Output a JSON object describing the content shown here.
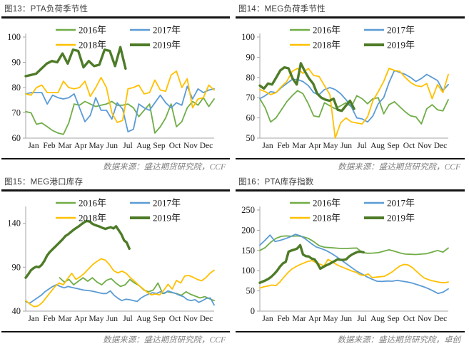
{
  "months": [
    "Jan",
    "Feb",
    "Mar",
    "Apr",
    "May",
    "Jun",
    "Jul",
    "Aug",
    "Sep",
    "Oct",
    "Nov",
    "Dec"
  ],
  "palette": {
    "title_color": "#3d3d3d",
    "source_color": "#7f7f7f",
    "axis_color": "#a6a6a6",
    "rule_color": "#141414",
    "series_2016": "#70AD47",
    "series_2017": "#5B9BD5",
    "series_2018": "#FFC000",
    "series_2019": "#4E7B28"
  },
  "chart_data": [
    {
      "type": "line",
      "title": "图13：PTA负荷季节性",
      "source": "数据来源：盛达期货研究院，CCF",
      "xlabel": "",
      "ylabel": "",
      "x_categories": [
        "Jan",
        "Feb",
        "Mar",
        "Apr",
        "May",
        "Jun",
        "Jul",
        "Aug",
        "Sep",
        "Oct",
        "Nov",
        "Dec"
      ],
      "ylim": [
        60,
        100
      ],
      "yticks": [
        60,
        70,
        80,
        90,
        100
      ],
      "grid": false,
      "legend_position": "top-center",
      "series": [
        {
          "name": "2016年",
          "color": "#70AD47",
          "width": 1.8,
          "values": [
            70.5,
            70,
            65.5,
            66,
            64.5,
            63,
            62,
            61.5,
            66,
            73.5,
            73,
            74.5,
            73.5,
            72.5,
            73,
            73.5,
            74.5,
            73,
            73,
            73.5,
            72,
            68.5,
            71,
            73.5,
            62,
            64.5,
            68,
            73.5,
            64.5,
            66.5,
            72,
            74.5,
            73,
            76,
            72.5,
            75.5
          ]
        },
        {
          "name": "2017年",
          "color": "#5B9BD5",
          "width": 1.8,
          "values": [
            77.5,
            78,
            78,
            78,
            73.5,
            77,
            76,
            75.5,
            76,
            77.5,
            72,
            66.5,
            69,
            76,
            71,
            71,
            67.5,
            74,
            71.5,
            62.5,
            63.5,
            73.5,
            72,
            71,
            74,
            77,
            74,
            72,
            74,
            73,
            80.5,
            75.5,
            79.5,
            78,
            79,
            79.5
          ]
        },
        {
          "name": "2018年",
          "color": "#FFC000",
          "width": 1.8,
          "values": [
            77.5,
            77,
            80,
            81,
            78,
            78,
            78,
            82.5,
            80,
            79.5,
            80,
            82.5,
            76.5,
            80,
            84,
            80,
            70,
            66.2,
            67,
            79.5,
            80,
            81,
            77.5,
            78,
            83,
            79,
            78.5,
            85,
            86.5,
            80,
            83.5,
            72,
            75.5,
            76,
            81,
            79
          ]
        },
        {
          "name": "2019年",
          "color": "#4E7B28",
          "width": 3.4,
          "end_frac": 0.53,
          "values": [
            84.5,
            85,
            85.5,
            87.5,
            89.5,
            90.5,
            90,
            93.5,
            89.5,
            95,
            94.5,
            88,
            90.5,
            88.5,
            89,
            95,
            94.5,
            88.5,
            96,
            87.5
          ]
        }
      ]
    },
    {
      "type": "line",
      "title": "图14：MEG负荷季节性",
      "source": "数据来源：盛达期货研究院，CCF",
      "xlabel": "",
      "ylabel": "",
      "x_categories": [
        "Jan",
        "Feb",
        "Mar",
        "Apr",
        "May",
        "Jun",
        "Jul",
        "Aug",
        "Sep",
        "Oct",
        "Nov",
        "Dec"
      ],
      "ylim": [
        50,
        100
      ],
      "yticks": [
        50,
        60,
        70,
        80,
        90,
        100
      ],
      "grid": false,
      "legend_position": "top-center",
      "series": [
        {
          "name": "2016年",
          "color": "#70AD47",
          "width": 1.8,
          "values": [
            69.5,
            65,
            58,
            60,
            64,
            68,
            71,
            73.5,
            72,
            67,
            61,
            60.5,
            67.5,
            66,
            64.5,
            66,
            67.5,
            65.5,
            71,
            69.5,
            67,
            69.5,
            70,
            62,
            66.5,
            68,
            65.5,
            63,
            61,
            60.5,
            57,
            64.5,
            66.5,
            64,
            63.5,
            69
          ]
        },
        {
          "name": "2017年",
          "color": "#5B9BD5",
          "width": 1.8,
          "values": [
            69.5,
            71,
            73,
            72.5,
            75,
            77,
            79,
            79,
            78,
            76,
            72.5,
            71.5,
            74,
            75,
            74,
            72,
            69,
            65.5,
            60,
            59.5,
            58,
            61,
            67,
            70,
            77.5,
            83.5,
            82.5,
            81.5,
            80,
            78,
            79.5,
            81.5,
            80,
            78.5,
            73.5,
            76.5
          ]
        },
        {
          "name": "2018年",
          "color": "#FFC000",
          "width": 1.8,
          "values": [
            74,
            73,
            71.5,
            72.5,
            75.5,
            78,
            83,
            84.5,
            82,
            84.5,
            81,
            80.5,
            76,
            71.5,
            50,
            57.5,
            60,
            58,
            57.5,
            57,
            60.5,
            68.5,
            73,
            78,
            84.5,
            83.5,
            83,
            80,
            77.5,
            76,
            75.5,
            77,
            69.5,
            76.5,
            72.5,
            81.5
          ]
        },
        {
          "name": "2019年",
          "color": "#4E7B28",
          "width": 3.4,
          "end_frac": 0.5,
          "values": [
            76,
            74.5,
            77,
            76.5,
            80,
            83.5,
            85,
            84.5,
            79.5,
            76.5,
            87,
            83,
            79.5,
            77,
            72,
            70,
            69,
            68.5,
            69.5,
            64,
            63.5,
            66,
            68.5,
            64.5
          ]
        }
      ]
    },
    {
      "type": "line",
      "title": "图15：MEG港口库存",
      "source": "数据来源：盛达期货研究院，CCF",
      "xlabel": "",
      "ylabel": "",
      "x_categories": [
        "Jan",
        "Feb",
        "Mar",
        "Apr",
        "May",
        "Jun",
        "Jul",
        "Aug",
        "Sep",
        "Oct",
        "Nov",
        "Dec"
      ],
      "ylim": [
        40,
        155
      ],
      "yticks": [
        40,
        90,
        140
      ],
      "grid": false,
      "legend_position": "top-center",
      "series": [
        {
          "name": "2016年",
          "color": "#70AD47",
          "width": 1.8,
          "start_frac": 0.18,
          "values": [
            78,
            73,
            76,
            70,
            74,
            78,
            74,
            78,
            73,
            70,
            75,
            77,
            72,
            68,
            70,
            76,
            72,
            69,
            64,
            62,
            64,
            72,
            60,
            62,
            61,
            60,
            58,
            62,
            59,
            57,
            55,
            56.5,
            54,
            52
          ]
        },
        {
          "name": "2017年",
          "color": "#5B9BD5",
          "width": 1.8,
          "values": [
            51,
            49,
            52,
            55,
            58,
            62,
            65,
            68,
            70,
            68,
            66.5,
            68,
            67,
            66,
            65,
            64,
            63.5,
            63,
            62,
            61,
            60,
            60,
            63,
            58,
            54.5,
            52,
            53.5,
            53,
            52,
            51,
            55,
            57.5,
            59.5,
            61,
            60,
            62,
            60,
            63,
            61.5,
            60,
            58,
            56.5,
            53,
            52,
            53,
            50,
            52,
            54.5,
            55,
            47
          ]
        },
        {
          "name": "2018年",
          "color": "#FFC000",
          "width": 1.8,
          "values": [
            52,
            48,
            45,
            46,
            50,
            56,
            62,
            68,
            72,
            70,
            77,
            83,
            76,
            79,
            83,
            88,
            93,
            96.5,
            99.5,
            98,
            93,
            86,
            83.5,
            85.5,
            83,
            78,
            74,
            69.5,
            65.5,
            61.5,
            58.5,
            59.5,
            58.5,
            64,
            70.5,
            65,
            75,
            72,
            80,
            80.5,
            78.5,
            76,
            74.5,
            78,
            83,
            86.5
          ]
        },
        {
          "name": "2019年",
          "color": "#4E7B28",
          "width": 3.4,
          "end_frac": 0.55,
          "values": [
            78,
            82,
            86.5,
            89,
            90.5,
            90,
            92.5,
            97,
            103,
            107,
            110,
            113,
            116,
            119,
            122,
            125.5,
            127.5,
            130,
            132.5,
            134.5,
            136.5,
            139,
            141,
            142.5,
            142,
            139.5,
            138,
            137,
            136,
            134.5,
            133.5,
            134.5,
            135.5,
            134,
            136.5,
            132,
            127.5,
            120.5,
            118,
            111
          ]
        }
      ]
    },
    {
      "type": "line",
      "title": "图16：PTA库存指数",
      "source": "数据来源：盛达期货研究院，卓创",
      "xlabel": "",
      "ylabel": "",
      "x_categories": [
        "Jan",
        "Feb",
        "Mar",
        "Apr",
        "May",
        "Jun",
        "Jul",
        "Aug",
        "Sep",
        "Oct",
        "Nov",
        "Dec"
      ],
      "ylim": [
        0,
        250
      ],
      "yticks": [
        0,
        50,
        100,
        150,
        200,
        250
      ],
      "grid": false,
      "legend_position": "top-center",
      "series": [
        {
          "name": "2016年",
          "color": "#70AD47",
          "width": 1.8,
          "values": [
            150,
            157,
            170,
            180,
            185,
            186,
            185,
            186,
            184,
            180,
            172,
            162,
            158,
            157,
            156,
            155,
            155,
            155.5,
            156,
            145,
            143,
            143.5,
            144.5,
            148,
            151.5,
            148,
            144,
            141,
            140.5,
            140,
            141,
            142,
            146,
            150,
            146,
            156
          ]
        },
        {
          "name": "2017年",
          "color": "#5B9BD5",
          "width": 1.8,
          "values": [
            163,
            175,
            188,
            172,
            175,
            179,
            184,
            190,
            186,
            178,
            168,
            159,
            155,
            150,
            143,
            135,
            126,
            117,
            108,
            99,
            92,
            85,
            79,
            74,
            73.5,
            74.5,
            74,
            76,
            74,
            72,
            69,
            65,
            61,
            56,
            50,
            43.5,
            47,
            55
          ]
        },
        {
          "name": "2018年",
          "color": "#FFC000",
          "width": 1.8,
          "values": [
            57,
            60,
            62,
            64.5,
            63,
            72,
            84,
            95,
            104,
            110,
            115,
            119,
            123,
            125,
            120,
            116,
            112,
            128,
            122,
            116,
            111,
            107,
            103,
            99,
            96,
            90,
            88,
            92,
            83,
            84,
            85,
            86,
            91,
            97,
            105,
            112,
            115.5,
            114,
            108,
            99,
            90,
            82,
            78,
            75,
            73,
            71,
            70,
            72
          ]
        },
        {
          "name": "2019年",
          "color": "#4E7B28",
          "width": 3.4,
          "end_frac": 0.55,
          "values": [
            70,
            73,
            76,
            80,
            85,
            92,
            100,
            110,
            118,
            122,
            147,
            150,
            152,
            155,
            163,
            140,
            136,
            135,
            130,
            128,
            118,
            105,
            109,
            113,
            116,
            120,
            124,
            128,
            127,
            126.5,
            128,
            135,
            140,
            143.5,
            146.5,
            147,
            145.5
          ]
        }
      ]
    }
  ]
}
